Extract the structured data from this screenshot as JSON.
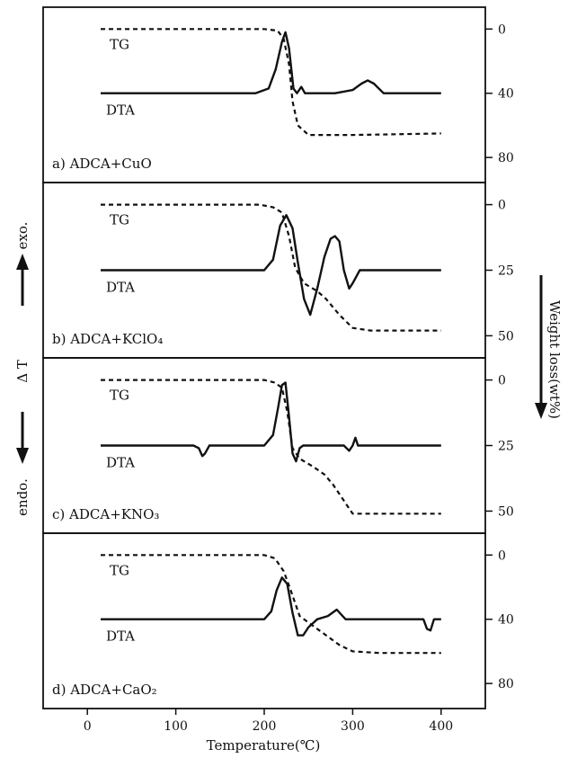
{
  "figure": {
    "x_axis_label": "Temperature(℃)",
    "x_ticks": [
      0,
      100,
      200,
      300,
      400
    ],
    "left_label": {
      "exo": "exo.",
      "delta_t": "Δ T",
      "endo": "endo."
    },
    "right_label": "Weight loss(wt%)",
    "curve_labels": {
      "tg": "TG",
      "dta": "DTA"
    }
  },
  "chart_data": {
    "type": "line",
    "xlabel": "Temperature(℃)",
    "ylabel": "Weight loss(wt%)",
    "xlim": [
      -50,
      450
    ],
    "panels": [
      {
        "title": "a) ADCA+CuO",
        "yticks": [
          0,
          40,
          80
        ],
        "ylim": [
          -8,
          90
        ],
        "tg": {
          "name": "TG",
          "x": [
            15,
            120,
            200,
            215,
            222,
            228,
            232,
            238,
            250,
            300,
            350,
            400
          ],
          "y": [
            0,
            0,
            0,
            1,
            6,
            22,
            45,
            60,
            66,
            66,
            65.5,
            65
          ]
        },
        "dta": {
          "name": "DTA",
          "x": [
            15,
            190,
            205,
            213,
            220,
            224,
            228,
            233,
            237,
            242,
            246,
            252,
            280,
            300,
            310,
            317,
            324,
            335,
            400
          ],
          "y": [
            40,
            40,
            37,
            25,
            8,
            2,
            12,
            37,
            40,
            36,
            40,
            40,
            40,
            38,
            34,
            32,
            34,
            40,
            40
          ]
        }
      },
      {
        "title": "b) ADCA+KClO₄",
        "yticks": [
          0,
          25,
          50
        ],
        "ylim": [
          -5,
          55
        ],
        "tg": {
          "name": "TG",
          "x": [
            15,
            100,
            195,
            210,
            220,
            228,
            235,
            245,
            260,
            270,
            285,
            300,
            320,
            400
          ],
          "y": [
            0,
            0,
            0,
            1,
            3,
            12,
            24,
            30,
            33,
            36,
            42,
            47,
            48,
            48
          ]
        },
        "dta": {
          "name": "DTA",
          "x": [
            15,
            200,
            210,
            218,
            225,
            232,
            238,
            245,
            252,
            260,
            268,
            275,
            280,
            285,
            290,
            296,
            300,
            308,
            400
          ],
          "y": [
            25,
            25,
            21,
            8,
            4,
            9,
            22,
            36,
            42,
            32,
            20,
            13,
            12,
            14,
            25,
            32,
            30,
            25,
            25
          ]
        }
      },
      {
        "title": "c) ADCA+KNO₃",
        "yticks": [
          0,
          25,
          50
        ],
        "ylim": [
          -5,
          55
        ],
        "tg": {
          "name": "TG",
          "x": [
            15,
            100,
            200,
            212,
            220,
            226,
            232,
            240,
            255,
            268,
            278,
            290,
            300,
            320,
            400
          ],
          "y": [
            0,
            0,
            0,
            1,
            3,
            12,
            26,
            30,
            33,
            36,
            40,
            46,
            51,
            51,
            51
          ]
        },
        "dta": {
          "name": "DTA",
          "x": [
            15,
            120,
            126,
            130,
            133,
            138,
            200,
            210,
            216,
            220,
            224,
            228,
            232,
            236,
            240,
            244,
            290,
            296,
            300,
            303,
            306,
            310,
            400
          ],
          "y": [
            25,
            25,
            26,
            29,
            28,
            25,
            25,
            21,
            10,
            2,
            1,
            14,
            28,
            31,
            26,
            25,
            25,
            27,
            25,
            22,
            25,
            25,
            25
          ]
        }
      },
      {
        "title": "d) ADCA+CaO₂",
        "yticks": [
          0,
          40,
          80
        ],
        "ylim": [
          -8,
          90
        ],
        "tg": {
          "name": "TG",
          "x": [
            15,
            120,
            200,
            212,
            222,
            230,
            240,
            255,
            270,
            285,
            300,
            330,
            400
          ],
          "y": [
            0,
            0,
            0,
            2,
            10,
            22,
            38,
            44,
            50,
            56,
            60,
            61,
            61
          ]
        },
        "dta": {
          "name": "DTA",
          "x": [
            15,
            200,
            208,
            214,
            220,
            226,
            232,
            238,
            244,
            250,
            260,
            272,
            282,
            292,
            300,
            380,
            384,
            388,
            392,
            400
          ],
          "y": [
            40,
            40,
            35,
            22,
            14,
            18,
            36,
            50,
            50,
            45,
            40,
            38,
            34,
            40,
            40,
            40,
            46,
            47,
            40,
            40
          ]
        }
      }
    ]
  }
}
